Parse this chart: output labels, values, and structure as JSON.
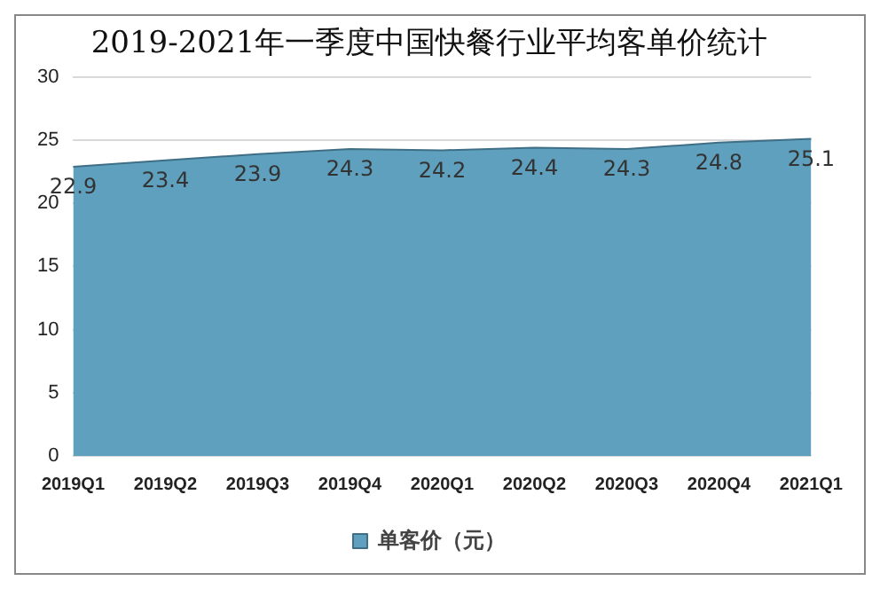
{
  "chart_data": {
    "type": "area",
    "title": "2019-2021年一季度中国快餐行业平均客单价统计",
    "categories": [
      "2019Q1",
      "2019Q2",
      "2019Q3",
      "2019Q4",
      "2020Q1",
      "2020Q2",
      "2020Q3",
      "2020Q4",
      "2021Q1"
    ],
    "series": [
      {
        "name": "单客价（元）",
        "color": "#5fa0be",
        "values": [
          22.9,
          23.4,
          23.9,
          24.3,
          24.2,
          24.4,
          24.3,
          24.8,
          25.1
        ]
      }
    ],
    "ylim": [
      0,
      30
    ],
    "yticks": [
      0,
      5,
      10,
      15,
      20,
      25,
      30
    ],
    "grid": "y",
    "legend": "bottom",
    "data_labels": true
  }
}
